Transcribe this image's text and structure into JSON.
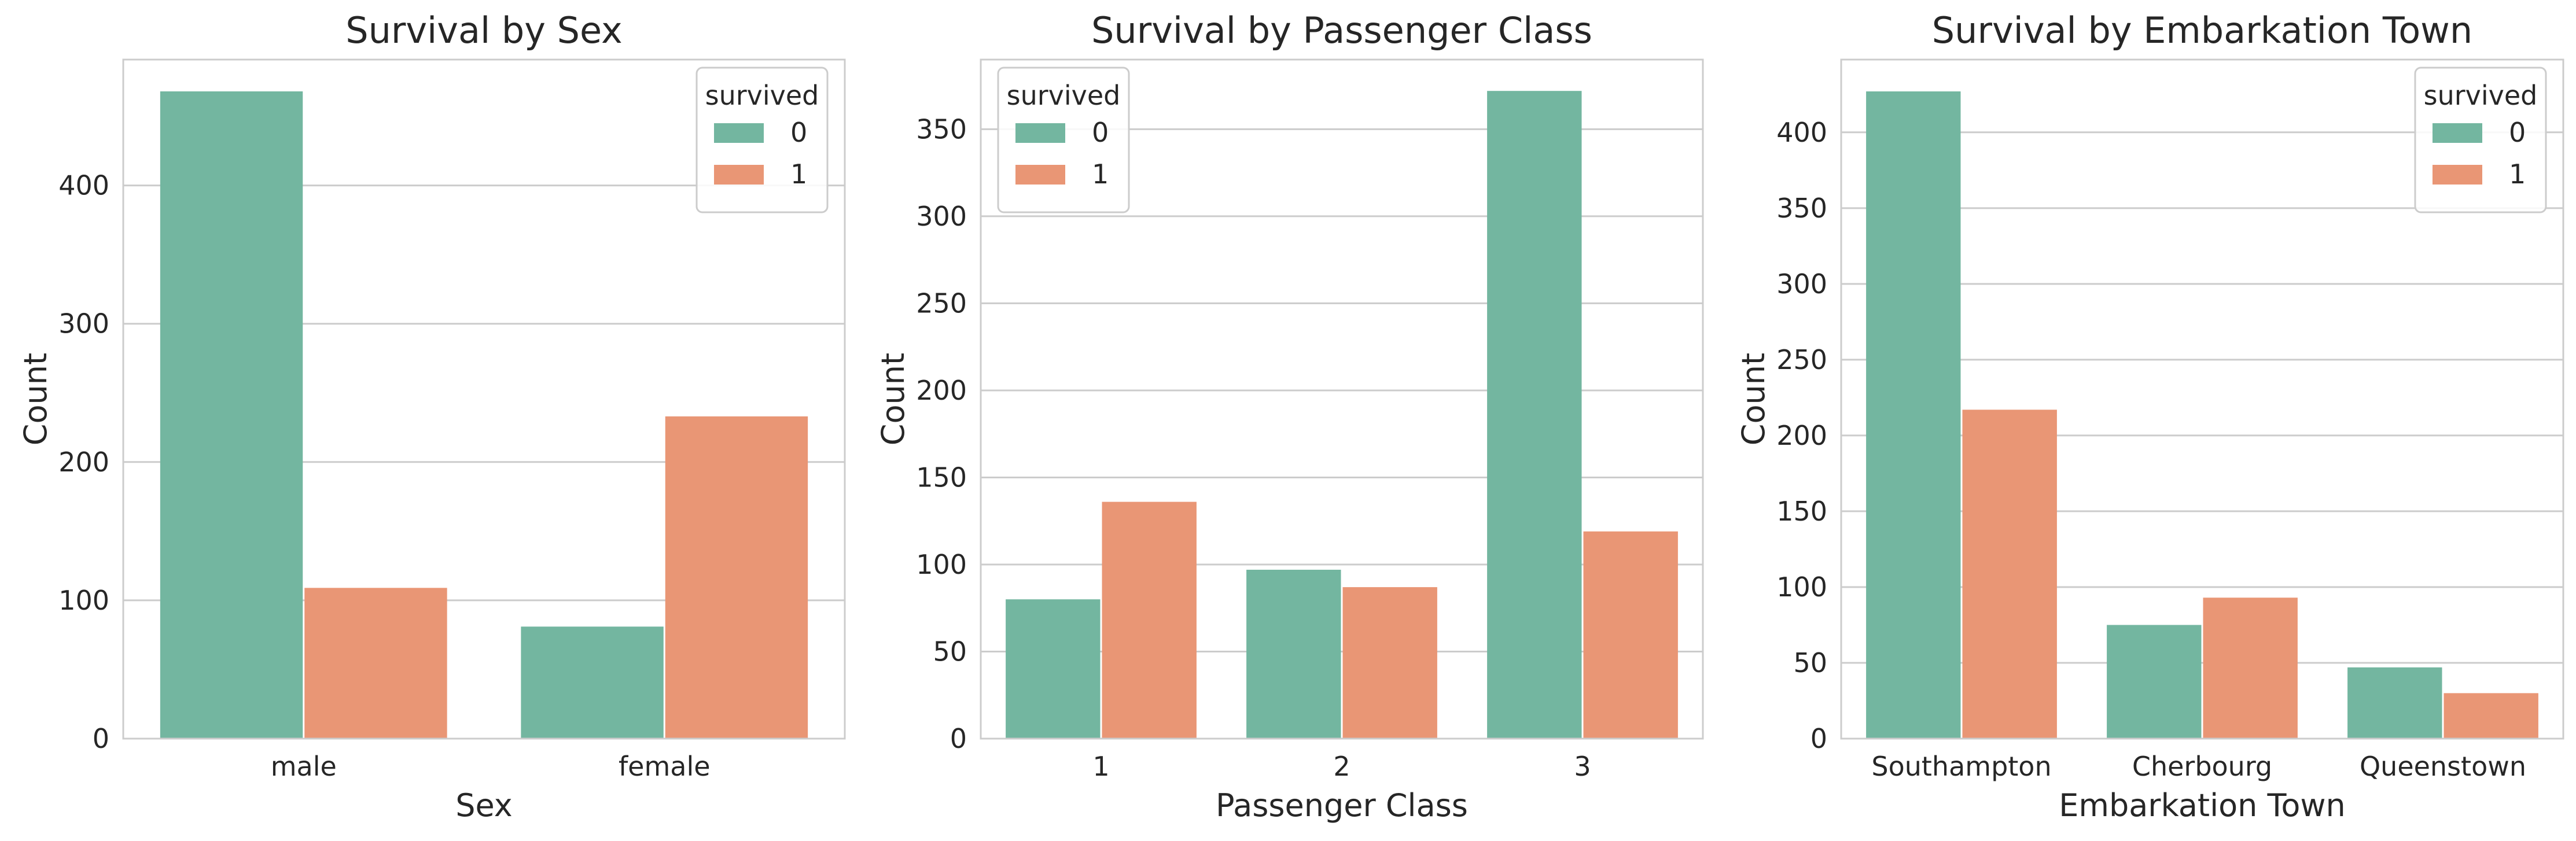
{
  "chart_data": [
    {
      "type": "bar",
      "title": "Survival by Sex",
      "xlabel": "Sex",
      "ylabel": "Count",
      "categories": [
        "male",
        "female"
      ],
      "series": [
        {
          "name": "0",
          "values": [
            468,
            81
          ]
        },
        {
          "name": "1",
          "values": [
            109,
            233
          ]
        }
      ],
      "ylim": [
        0,
        491
      ],
      "yticks": [
        0,
        100,
        200,
        300,
        400
      ],
      "grid": true,
      "legend": {
        "title": "survived",
        "position": "top-right"
      }
    },
    {
      "type": "bar",
      "title": "Survival by Passenger Class",
      "xlabel": "Passenger Class",
      "ylabel": "Count",
      "categories": [
        "1",
        "2",
        "3"
      ],
      "series": [
        {
          "name": "0",
          "values": [
            80,
            97,
            372
          ]
        },
        {
          "name": "1",
          "values": [
            136,
            87,
            119
          ]
        }
      ],
      "ylim": [
        0,
        390
      ],
      "yticks": [
        0,
        50,
        100,
        150,
        200,
        250,
        300,
        350
      ],
      "grid": true,
      "legend": {
        "title": "survived",
        "position": "top-left"
      }
    },
    {
      "type": "bar",
      "title": "Survival by Embarkation Town",
      "xlabel": "Embarkation Town",
      "ylabel": "Count",
      "categories": [
        "Southampton",
        "Cherbourg",
        "Queenstown"
      ],
      "series": [
        {
          "name": "0",
          "values": [
            427,
            75,
            47
          ]
        },
        {
          "name": "1",
          "values": [
            217,
            93,
            30
          ]
        }
      ],
      "ylim": [
        0,
        448
      ],
      "yticks": [
        0,
        50,
        100,
        150,
        200,
        250,
        300,
        350,
        400
      ],
      "grid": true,
      "legend": {
        "title": "survived",
        "position": "top-right"
      }
    }
  ],
  "colors": {
    "series_0": "#73b6a0",
    "series_1": "#e99675",
    "grid": "#cccccc",
    "axes_edge": "#cccccc",
    "text": "#262626"
  }
}
